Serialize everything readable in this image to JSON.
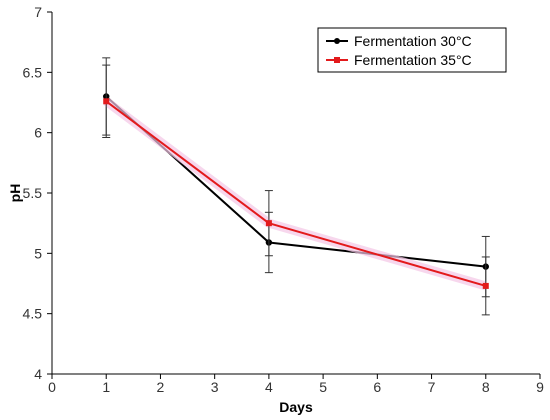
{
  "chart_data": {
    "type": "line",
    "title": "",
    "xlabel": "Days",
    "ylabel": "pH",
    "xlim": [
      0,
      9
    ],
    "ylim": [
      4,
      7
    ],
    "x_ticks": [
      0,
      1,
      2,
      3,
      4,
      5,
      6,
      7,
      8,
      9
    ],
    "y_ticks": [
      4,
      4.5,
      5,
      5.5,
      6,
      6.5,
      7
    ],
    "grid": false,
    "legend_position": "top-right",
    "series": [
      {
        "name": "Fermentation 30°C",
        "color": "#000000",
        "marker": "circle",
        "x": [
          1,
          4,
          8
        ],
        "y": [
          6.3,
          5.09,
          4.89
        ],
        "error": [
          0.32,
          0.25,
          0.25
        ]
      },
      {
        "name": "Fermentation 35°C",
        "color": "#e31a1c",
        "marker": "square",
        "x": [
          1,
          4,
          8
        ],
        "y": [
          6.26,
          5.25,
          4.73
        ],
        "error": [
          0.3,
          0.27,
          0.24
        ]
      }
    ]
  }
}
